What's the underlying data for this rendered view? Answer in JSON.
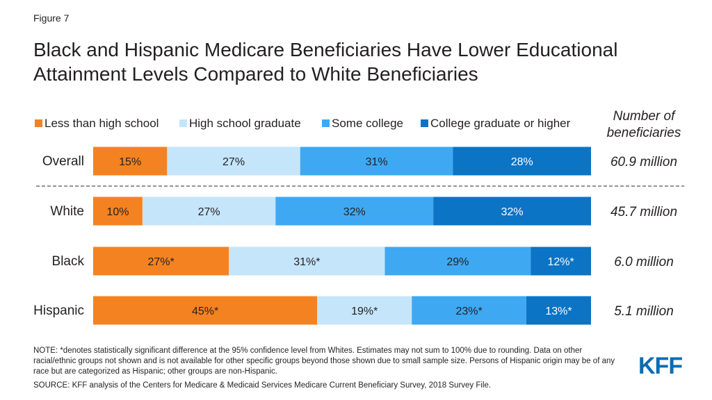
{
  "figure_label": "Figure 7",
  "title": "Black and Hispanic Medicare Beneficiaries Have Lower Educational Attainment Levels Compared to White Beneficiaries",
  "note": "NOTE: *denotes statistically significant difference at the 95% confidence level from Whites. Estimates may not sum to 100% due to rounding. Data on other racial/ethnic groups not shown and is not available for other specific groups beyond those shown due to small sample size. Persons of Hispanic origin may be of any race but are categorized as Hispanic; other groups are non-Hispanic.",
  "source": "SOURCE: KFF analysis of the Centers for Medicare & Medicaid Services Medicare Current Beneficiary Survey, 2018 Survey File.",
  "logo_text": "KFF",
  "colors": {
    "less_than_hs": "#f58220",
    "hs_grad": "#c5e5fa",
    "some_college": "#3ea8f3",
    "college_grad": "#0b74c5",
    "text": "#231f20",
    "label_on_dark": "#ffffff"
  },
  "chart_data": {
    "type": "bar",
    "orientation": "horizontal",
    "stacked": true,
    "legend_position": "top",
    "categories": [
      "Overall",
      "White",
      "Black",
      "Hispanic"
    ],
    "series": [
      {
        "name": "Less than high school",
        "color_key": "less_than_hs",
        "values": [
          15,
          10,
          27,
          45
        ],
        "labels": [
          "15%",
          "10%",
          "27%*",
          "45%*"
        ]
      },
      {
        "name": "High school graduate",
        "color_key": "hs_grad",
        "values": [
          27,
          27,
          31,
          19
        ],
        "labels": [
          "27%",
          "27%",
          "31%*",
          "19%*"
        ]
      },
      {
        "name": "Some college",
        "color_key": "some_college",
        "values": [
          31,
          32,
          29,
          23
        ],
        "labels": [
          "31%",
          "32%",
          "29%",
          "23%*"
        ]
      },
      {
        "name": "College graduate or higher",
        "color_key": "college_grad",
        "values": [
          28,
          32,
          12,
          13
        ],
        "labels": [
          "28%",
          "32%",
          "12%*",
          "13%*"
        ]
      }
    ],
    "side_column": {
      "header": [
        "Number of",
        "beneficiaries"
      ],
      "values": [
        "60.9 million",
        "45.7 million",
        "6.0 million",
        "5.1 million"
      ]
    },
    "separator_after_category": "Overall"
  }
}
